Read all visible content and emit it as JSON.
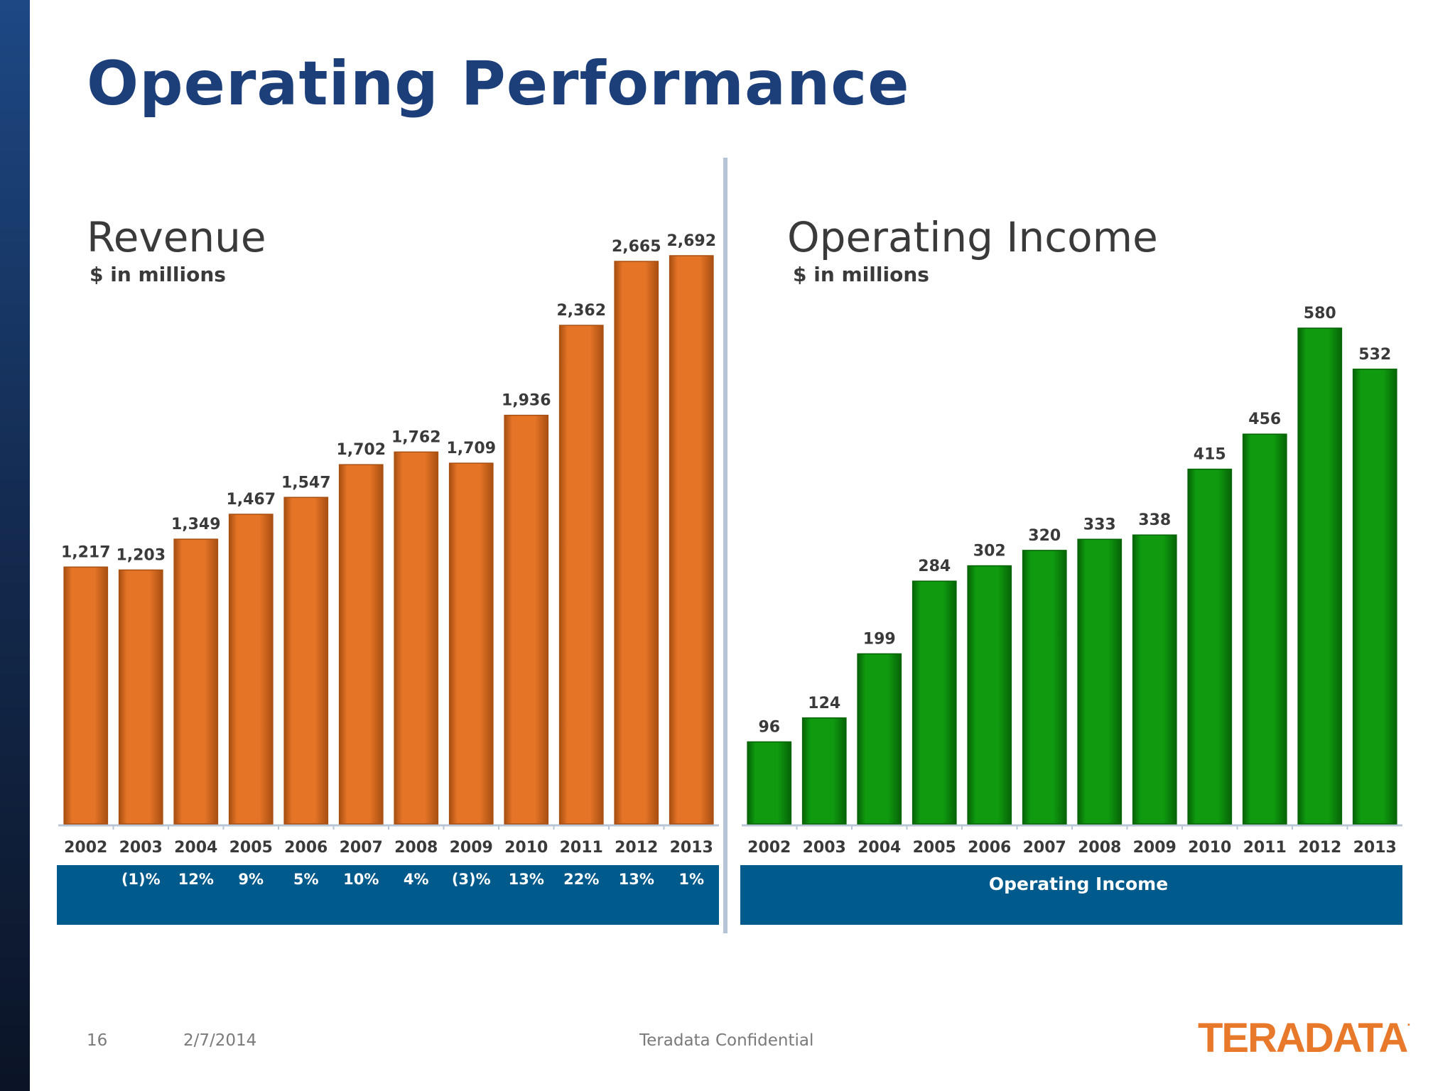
{
  "slide": {
    "title": "Operating Performance",
    "page_number": "16",
    "date": "2/7/2014",
    "confidential": "Teradata Confidential",
    "logo_text": "TERADATA",
    "logo_mark": "."
  },
  "colors": {
    "title": "#1c3f7a",
    "revenue_bar": "#e57426",
    "income_bar": "#0f9a0f",
    "band": "#005a8c"
  },
  "revenue_panel": {
    "title": "Revenue",
    "subtitle": "$ in millions",
    "growth_rates": [
      "(1)%",
      "12%",
      "9%",
      "5%",
      "10%",
      "4%",
      "(3)%",
      "13%",
      "22%",
      "13%",
      "1%"
    ]
  },
  "income_panel": {
    "title": "Operating Income",
    "subtitle": "$ in millions",
    "band_label": "Operating Income"
  },
  "chart_data": [
    {
      "type": "bar",
      "title": "Revenue",
      "subtitle": "$ in millions",
      "categories": [
        "2002",
        "2003",
        "2004",
        "2005",
        "2006",
        "2007",
        "2008",
        "2009",
        "2010",
        "2011",
        "2012",
        "2013"
      ],
      "values": [
        1217,
        1203,
        1349,
        1467,
        1547,
        1702,
        1762,
        1709,
        1936,
        2362,
        2665,
        2692
      ],
      "data_labels": [
        "1,217",
        "1,203",
        "1,349",
        "1,467",
        "1,547",
        "1,702",
        "1,762",
        "1,709",
        "1,936",
        "2,362",
        "2,665",
        "2,692"
      ],
      "ylim": [
        0,
        2692
      ],
      "grid": false
    },
    {
      "type": "bar",
      "title": "Operating Income",
      "subtitle": "$ in millions",
      "categories": [
        "2002",
        "2003",
        "2004",
        "2005",
        "2006",
        "2007",
        "2008",
        "2009",
        "2010",
        "2011",
        "2012",
        "2013"
      ],
      "values": [
        96,
        124,
        199,
        284,
        302,
        320,
        333,
        338,
        415,
        456,
        580,
        532
      ],
      "data_labels": [
        "96",
        "124",
        "199",
        "284",
        "302",
        "320",
        "333",
        "338",
        "415",
        "456",
        "580",
        "532"
      ],
      "ylim": [
        0,
        580
      ],
      "grid": false
    }
  ]
}
